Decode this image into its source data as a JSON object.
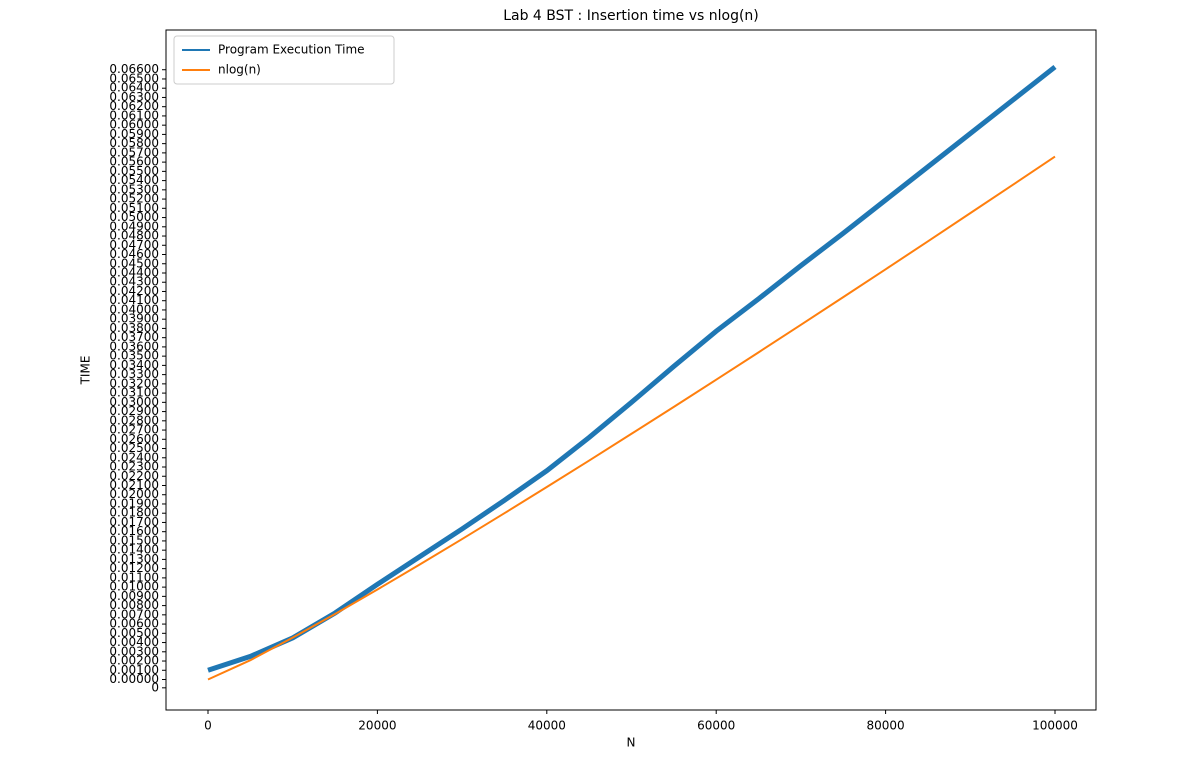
{
  "chart_data": {
    "type": "line",
    "title": "Lab 4 BST : Insertion time vs nlog(n)",
    "xlabel": "N",
    "ylabel": "TIME",
    "x": [
      0,
      5000,
      10000,
      15000,
      20000,
      25000,
      30000,
      35000,
      40000,
      45000,
      50000,
      55000,
      60000,
      65000,
      70000,
      75000,
      80000,
      85000,
      90000,
      95000,
      100000
    ],
    "series": [
      {
        "name": "Program Execution Time",
        "color": "#1f77b4",
        "values": [
          0.001,
          0.0025,
          0.0045,
          0.0072,
          0.0103,
          0.0133,
          0.0163,
          0.0194,
          0.0226,
          0.0262,
          0.03,
          0.0339,
          0.0377,
          0.0412,
          0.0448,
          0.0483,
          0.0519,
          0.0555,
          0.0591,
          0.0627,
          0.0663
        ]
      },
      {
        "name": "nlog(n)",
        "color": "#ff7f0e",
        "values": [
          0,
          0.00209,
          0.00453,
          0.00709,
          0.00974,
          0.01245,
          0.0152,
          0.018,
          0.02084,
          0.0237,
          0.0266,
          0.02951,
          0.03245,
          0.03541,
          0.03839,
          0.04139,
          0.0444,
          0.04743,
          0.05048,
          0.05353,
          0.0566
        ]
      }
    ],
    "xlim": [
      -4959,
      104841
    ],
    "xticks": [
      0,
      20000,
      40000,
      60000,
      80000,
      100000
    ],
    "ylim": [
      -0.0033,
      0.0703
    ],
    "yticks": [
      {
        "value": -0.0009,
        "label": "0"
      },
      {
        "value": 0,
        "label": "0.00000"
      },
      {
        "value": 0.001,
        "label": "0.00100"
      },
      {
        "value": 0.002,
        "label": "0.00200"
      },
      {
        "value": 0.003,
        "label": "0.00300"
      },
      {
        "value": 0.004,
        "label": "0.00400"
      },
      {
        "value": 0.005,
        "label": "0.00500"
      },
      {
        "value": 0.006,
        "label": "0.00600"
      },
      {
        "value": 0.007,
        "label": "0.00700"
      },
      {
        "value": 0.008,
        "label": "0.00800"
      },
      {
        "value": 0.009,
        "label": "0.00900"
      },
      {
        "value": 0.01,
        "label": "0.01000"
      },
      {
        "value": 0.011,
        "label": "0.01100"
      },
      {
        "value": 0.012,
        "label": "0.01200"
      },
      {
        "value": 0.013,
        "label": "0.01300"
      },
      {
        "value": 0.014,
        "label": "0.01400"
      },
      {
        "value": 0.015,
        "label": "0.01500"
      },
      {
        "value": 0.016,
        "label": "0.01600"
      },
      {
        "value": 0.017,
        "label": "0.01700"
      },
      {
        "value": 0.018,
        "label": "0.01800"
      },
      {
        "value": 0.019,
        "label": "0.01900"
      },
      {
        "value": 0.02,
        "label": "0.02000"
      },
      {
        "value": 0.021,
        "label": "0.02100"
      },
      {
        "value": 0.022,
        "label": "0.02200"
      },
      {
        "value": 0.023,
        "label": "0.02300"
      },
      {
        "value": 0.024,
        "label": "0.02400"
      },
      {
        "value": 0.025,
        "label": "0.02500"
      },
      {
        "value": 0.026,
        "label": "0.02600"
      },
      {
        "value": 0.027,
        "label": "0.02700"
      },
      {
        "value": 0.028,
        "label": "0.02800"
      },
      {
        "value": 0.029,
        "label": "0.02900"
      },
      {
        "value": 0.03,
        "label": "0.03000"
      },
      {
        "value": 0.031,
        "label": "0.03100"
      },
      {
        "value": 0.032,
        "label": "0.03200"
      },
      {
        "value": 0.033,
        "label": "0.03300"
      },
      {
        "value": 0.034,
        "label": "0.03400"
      },
      {
        "value": 0.035,
        "label": "0.03500"
      },
      {
        "value": 0.036,
        "label": "0.03600"
      },
      {
        "value": 0.037,
        "label": "0.03700"
      },
      {
        "value": 0.038,
        "label": "0.03800"
      },
      {
        "value": 0.039,
        "label": "0.03900"
      },
      {
        "value": 0.04,
        "label": "0.04000"
      },
      {
        "value": 0.041,
        "label": "0.04100"
      },
      {
        "value": 0.042,
        "label": "0.04200"
      },
      {
        "value": 0.043,
        "label": "0.04300"
      },
      {
        "value": 0.044,
        "label": "0.04400"
      },
      {
        "value": 0.045,
        "label": "0.04500"
      },
      {
        "value": 0.046,
        "label": "0.04600"
      },
      {
        "value": 0.047,
        "label": "0.04700"
      },
      {
        "value": 0.048,
        "label": "0.04800"
      },
      {
        "value": 0.049,
        "label": "0.04900"
      },
      {
        "value": 0.05,
        "label": "0.05000"
      },
      {
        "value": 0.051,
        "label": "0.05100"
      },
      {
        "value": 0.052,
        "label": "0.05200"
      },
      {
        "value": 0.053,
        "label": "0.05300"
      },
      {
        "value": 0.054,
        "label": "0.05400"
      },
      {
        "value": 0.055,
        "label": "0.05500"
      },
      {
        "value": 0.056,
        "label": "0.05600"
      },
      {
        "value": 0.057,
        "label": "0.05700"
      },
      {
        "value": 0.058,
        "label": "0.05800"
      },
      {
        "value": 0.059,
        "label": "0.05900"
      },
      {
        "value": 0.06,
        "label": "0.06000"
      },
      {
        "value": 0.061,
        "label": "0.06100"
      },
      {
        "value": 0.062,
        "label": "0.06200"
      },
      {
        "value": 0.063,
        "label": "0.06300"
      },
      {
        "value": 0.064,
        "label": "0.06400"
      },
      {
        "value": 0.065,
        "label": "0.06500"
      },
      {
        "value": 0.066,
        "label": "0.06600"
      }
    ],
    "legend": "upper left",
    "grid": false
  }
}
